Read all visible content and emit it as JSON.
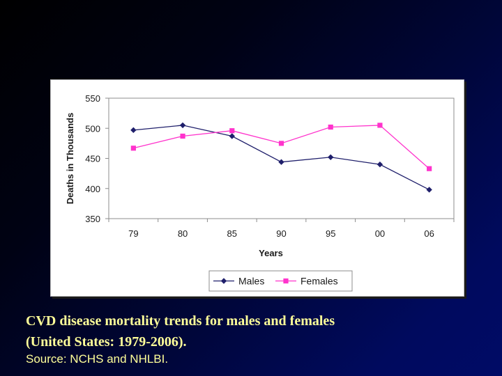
{
  "caption": {
    "line1": "CVD disease mortality trends for males and females",
    "line2": "(United States: 1979-2006).",
    "source": "Source: NCHS and NHLBI."
  },
  "chart_data": {
    "type": "line",
    "categories": [
      "79",
      "80",
      "85",
      "90",
      "95",
      "00",
      "06"
    ],
    "series": [
      {
        "name": "Males",
        "color": "#1f1f6b",
        "marker": "diamond",
        "values": [
          497,
          505,
          487,
          444,
          452,
          440,
          398
        ]
      },
      {
        "name": "Females",
        "color": "#ff33cc",
        "marker": "square",
        "values": [
          467,
          487,
          496,
          475,
          502,
          505,
          433
        ]
      }
    ],
    "title": "",
    "xlabel": "Years",
    "ylabel": "Deaths in Thousands",
    "ylim": [
      350,
      550
    ],
    "yticks": [
      350,
      400,
      450,
      500,
      550
    ],
    "ytick_labels": [
      "350",
      "400",
      "450",
      "500",
      "550"
    ],
    "grid": false,
    "legend_position": "bottom"
  }
}
